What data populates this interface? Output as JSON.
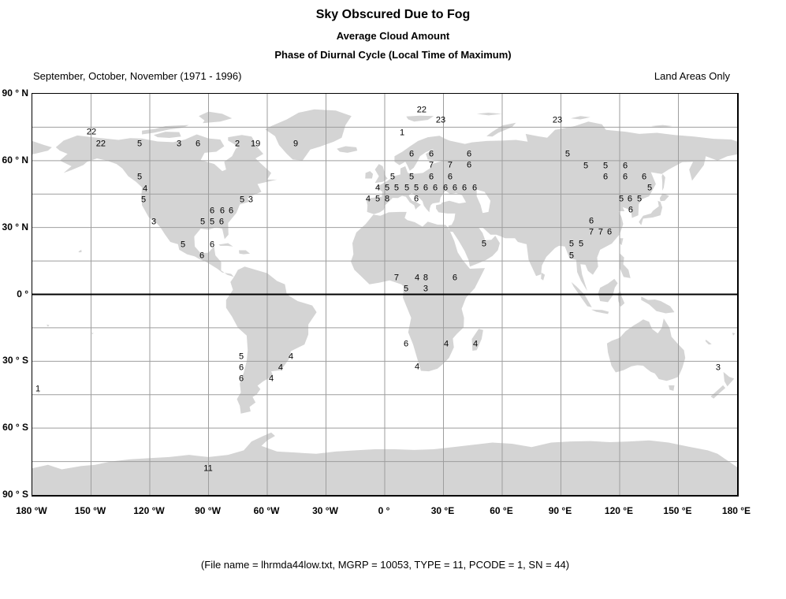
{
  "title": "Sky Obscured Due to Fog",
  "subtitle1": "Average Cloud Amount",
  "subtitle2": "Phase of Diurnal Cycle (Local Time of Maximum)",
  "season_label": "September, October, November (1971 - 1996)",
  "coverage_label": "Land Areas Only",
  "footer": "(File name = lhrmda44low.txt, MGRP = 10053, TYPE = 11, PCODE = 1, SN = 44)",
  "chart_data": {
    "type": "scatter",
    "subtype": "geographic-map-labels",
    "projection": "equirectangular",
    "title": "Sky Obscured Due to Fog",
    "subtitle1": "Average Cloud Amount",
    "subtitle2": "Phase of Diurnal Cycle (Local Time of Maximum)",
    "annotation_left": "September, October, November (1971 - 1996)",
    "annotation_right": "Land Areas Only",
    "xlabel": "Longitude",
    "ylabel": "Latitude",
    "xlim": [
      -180,
      180
    ],
    "ylim": [
      -90,
      90
    ],
    "grid": {
      "lon_step_deg": 30,
      "lat_step_deg": 15,
      "equator_emphasized": true
    },
    "x_ticks": [
      "180 °W",
      "150 °W",
      "120 °W",
      "90 °W",
      "60 °W",
      "30 °W",
      "0 °",
      "30 °E",
      "60 °E",
      "90 °E",
      "120 °E",
      "150 °E",
      "180 °E"
    ],
    "y_ticks": [
      "90 ° N",
      "60 ° N",
      "30 ° N",
      "0 °",
      "30 ° S",
      "60 ° S",
      "90 ° S"
    ],
    "value_meaning": "local time of maximum (hour of diurnal cycle)",
    "points": [
      [
        22,
        -149.8,
        73.0
      ],
      [
        22,
        -145.0,
        67.7
      ],
      [
        5,
        -125.2,
        67.7
      ],
      [
        3,
        -105.1,
        67.7
      ],
      [
        6,
        -95.4,
        67.7
      ],
      [
        2,
        -75.3,
        67.7
      ],
      [
        19,
        -66.0,
        67.7
      ],
      [
        9,
        -45.5,
        67.7
      ],
      [
        5,
        -125.2,
        52.9
      ],
      [
        4,
        -122.4,
        47.6
      ],
      [
        5,
        -123.2,
        42.6
      ],
      [
        5,
        -72.9,
        42.6
      ],
      [
        3,
        -68.5,
        42.6
      ],
      [
        6,
        -88.2,
        37.7
      ],
      [
        6,
        -83.0,
        37.7
      ],
      [
        6,
        -78.5,
        37.7
      ],
      [
        3,
        -118.0,
        32.7
      ],
      [
        5,
        -93.0,
        32.7
      ],
      [
        5,
        -88.2,
        32.7
      ],
      [
        6,
        -83.4,
        32.7
      ],
      [
        5,
        -103.1,
        22.5
      ],
      [
        6,
        -88.2,
        22.5
      ],
      [
        6,
        -93.4,
        17.5
      ],
      [
        22,
        18.9,
        82.9
      ],
      [
        23,
        28.6,
        78.3
      ],
      [
        23,
        88.2,
        78.3
      ],
      [
        1,
        8.9,
        72.7
      ],
      [
        6,
        13.7,
        63.1
      ],
      [
        6,
        23.8,
        63.1
      ],
      [
        6,
        43.1,
        63.1
      ],
      [
        7,
        23.8,
        58.2
      ],
      [
        7,
        33.4,
        58.2
      ],
      [
        6,
        43.1,
        58.2
      ],
      [
        5,
        4.0,
        52.9
      ],
      [
        5,
        13.7,
        52.9
      ],
      [
        6,
        23.8,
        52.9
      ],
      [
        6,
        33.4,
        52.9
      ],
      [
        4,
        -3.6,
        47.9
      ],
      [
        5,
        1.2,
        47.9
      ],
      [
        5,
        6.0,
        47.9
      ],
      [
        5,
        11.3,
        47.9
      ],
      [
        5,
        16.1,
        47.9
      ],
      [
        6,
        20.9,
        47.9
      ],
      [
        6,
        25.8,
        47.9
      ],
      [
        6,
        31.0,
        47.9
      ],
      [
        6,
        35.8,
        47.9
      ],
      [
        6,
        40.7,
        47.9
      ],
      [
        6,
        45.9,
        47.9
      ],
      [
        4,
        -8.5,
        43.0
      ],
      [
        5,
        -3.6,
        43.0
      ],
      [
        8,
        1.2,
        43.0
      ],
      [
        6,
        16.1,
        43.0
      ],
      [
        5,
        93.4,
        63.1
      ],
      [
        5,
        102.7,
        57.8
      ],
      [
        5,
        112.8,
        57.8
      ],
      [
        6,
        122.8,
        57.8
      ],
      [
        6,
        112.8,
        52.9
      ],
      [
        6,
        122.8,
        52.9
      ],
      [
        6,
        132.5,
        52.9
      ],
      [
        5,
        135.3,
        47.9
      ],
      [
        5,
        120.8,
        43.0
      ],
      [
        6,
        125.2,
        43.0
      ],
      [
        5,
        130.1,
        43.0
      ],
      [
        6,
        125.6,
        38.0
      ],
      [
        6,
        105.5,
        33.1
      ],
      [
        7,
        105.5,
        28.1
      ],
      [
        7,
        110.3,
        28.1
      ],
      [
        6,
        114.8,
        28.1
      ],
      [
        5,
        95.4,
        22.8
      ],
      [
        5,
        100.3,
        22.8
      ],
      [
        5,
        95.4,
        17.5
      ],
      [
        5,
        50.7,
        22.8
      ],
      [
        7,
        6.0,
        7.6
      ],
      [
        4,
        16.5,
        7.6
      ],
      [
        8,
        20.9,
        7.6
      ],
      [
        6,
        35.8,
        7.6
      ],
      [
        5,
        10.9,
        2.7
      ],
      [
        3,
        20.9,
        2.7
      ],
      [
        6,
        10.9,
        -22.1
      ],
      [
        4,
        31.4,
        -22.1
      ],
      [
        4,
        46.3,
        -22.1
      ],
      [
        4,
        16.5,
        -32.4
      ],
      [
        5,
        -73.3,
        -27.8
      ],
      [
        4,
        -47.9,
        -27.8
      ],
      [
        6,
        -73.3,
        -32.7
      ],
      [
        4,
        -53.2,
        -32.7
      ],
      [
        6,
        -73.3,
        -37.7
      ],
      [
        4,
        -58.0,
        -37.7
      ],
      [
        1,
        -177.2,
        -42.3
      ],
      [
        3,
        170.3,
        -32.7
      ],
      [
        11,
        -90.2,
        -78.0
      ]
    ],
    "colors": {
      "land": "#d4d4d4",
      "grid": "#9e9e9e",
      "equator": "#000000",
      "frame": "#000000",
      "text": "#000000",
      "background": "#ffffff"
    }
  }
}
